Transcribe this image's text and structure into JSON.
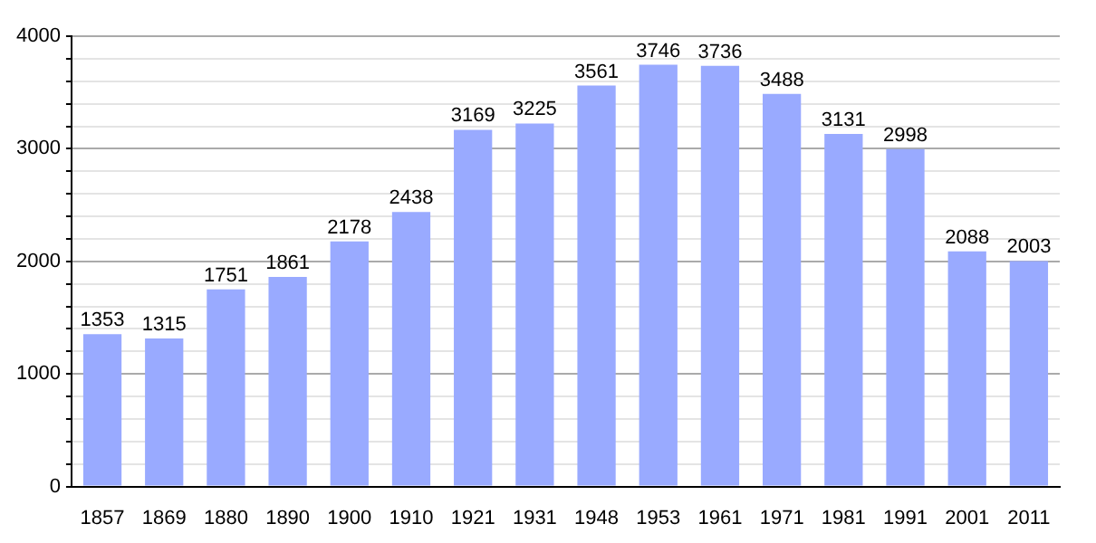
{
  "chart_data": {
    "type": "bar",
    "categories": [
      "1857",
      "1869",
      "1880",
      "1890",
      "1900",
      "1910",
      "1921",
      "1931",
      "1948",
      "1953",
      "1961",
      "1971",
      "1981",
      "1991",
      "2001",
      "2011"
    ],
    "values": [
      1353,
      1315,
      1751,
      1861,
      2178,
      2438,
      3169,
      3225,
      3561,
      3746,
      3736,
      3488,
      3131,
      2998,
      2088,
      2003
    ],
    "color": "#99aaff",
    "ylim": [
      0,
      4000
    ],
    "yticks": [
      0,
      {
        "value": 200,
        "label": null
      },
      {
        "value": 400,
        "label": null
      },
      {
        "value": 600,
        "label": null
      },
      {
        "value": 800,
        "label": null
      },
      1000,
      {
        "value": 1200,
        "label": null
      },
      {
        "value": 1400,
        "label": null
      },
      {
        "value": 1600,
        "label": null
      },
      {
        "value": 1800,
        "label": null
      },
      2000,
      {
        "value": 2200,
        "label": null
      },
      {
        "value": 2400,
        "label": null
      },
      {
        "value": 2600,
        "label": null
      },
      {
        "value": 2800,
        "label": null
      },
      3000,
      {
        "value": 3200,
        "label": null
      },
      {
        "value": 3400,
        "label": null
      },
      {
        "value": 3600,
        "label": null
      },
      {
        "value": 3800,
        "label": null
      },
      4000
    ],
    "grid": "y",
    "data_labels": true,
    "legend": false
  }
}
